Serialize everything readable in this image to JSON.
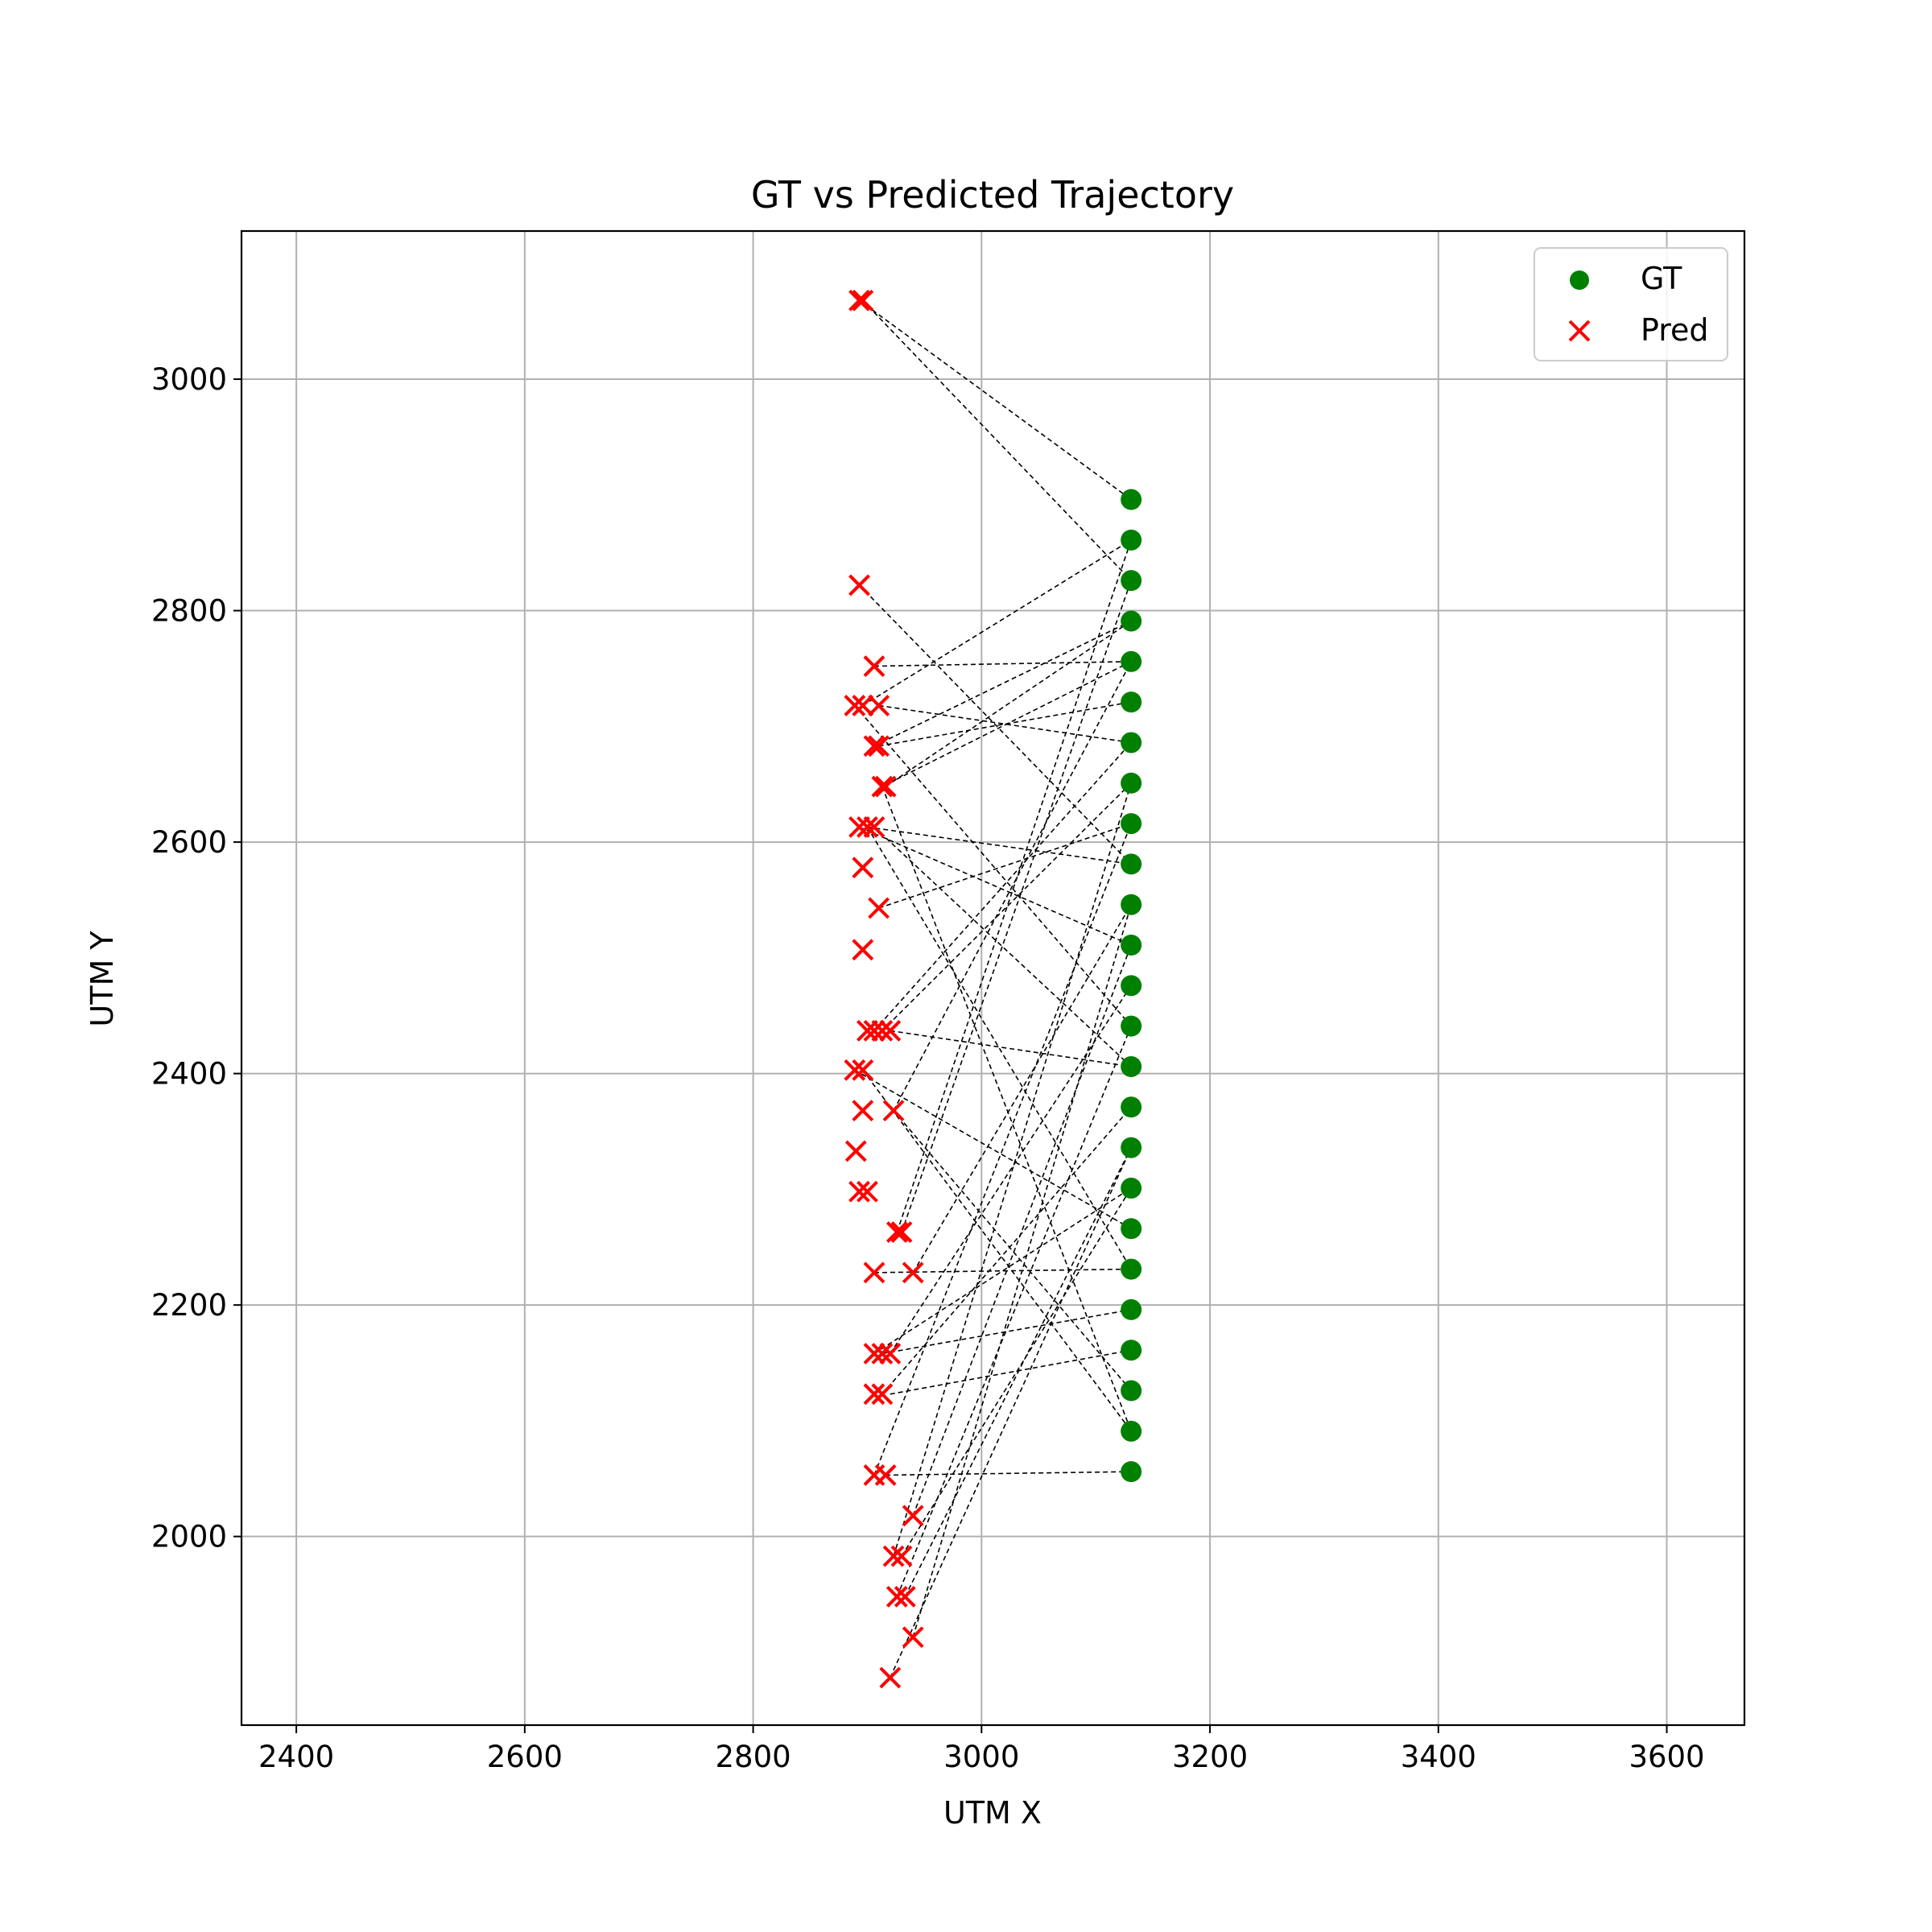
{
  "chart_data": {
    "type": "scatter",
    "title": "GT vs Predicted Trajectory",
    "xlabel": "UTM X",
    "ylabel": "UTM Y",
    "xlim": [
      2352,
      3668
    ],
    "ylim": [
      1837,
      3128
    ],
    "xticks": [
      2400,
      2600,
      2800,
      3000,
      3200,
      3400,
      3600
    ],
    "yticks": [
      2000,
      2200,
      2400,
      2600,
      2800,
      3000
    ],
    "grid": true,
    "legend_position": "top-right",
    "colors": {
      "gt": "#008000",
      "pred": "#ff0000",
      "link": "#000000"
    },
    "series": [
      {
        "name": "GT",
        "marker": "circle",
        "x": [
          3131,
          3131,
          3131,
          3131,
          3131,
          3131,
          3131,
          3131,
          3131,
          3131,
          3131,
          3131,
          3131,
          3131,
          3131,
          3131,
          3131,
          3131,
          3131,
          3131,
          3131,
          3131,
          3131,
          3131,
          3131
        ],
        "y": [
          2896,
          2861,
          2826,
          2791,
          2756,
          2721,
          2686,
          2651,
          2616,
          2581,
          2546,
          2511,
          2476,
          2441,
          2406,
          2371,
          2336,
          2301,
          2266,
          2231,
          2196,
          2161,
          2126,
          2091,
          2056
        ]
      },
      {
        "name": "Pred",
        "marker": "x",
        "x": [
          2893,
          2896,
          2893,
          2906,
          2889,
          2896,
          2910,
          2906,
          2910,
          2913,
          2916,
          2893,
          2900,
          2906,
          2896,
          2910,
          2896,
          2900,
          2906,
          2913,
          2920,
          2889,
          2896,
          2923,
          2896,
          2890,
          2893,
          2900,
          2926,
          2930,
          2906,
          2940,
          2906,
          2913,
          2920,
          2906,
          2913,
          2906,
          2916,
          2940,
          2923,
          2930,
          2926,
          2933,
          2940,
          2920
        ],
        "y": [
          3068,
          3068,
          2822,
          2752,
          2718,
          2718,
          2718,
          2683,
          2683,
          2648,
          2648,
          2613,
          2613,
          2613,
          2578,
          2543,
          2507,
          2437,
          2437,
          2437,
          2437,
          2403,
          2403,
          2368,
          2368,
          2333,
          2298,
          2298,
          2263,
          2263,
          2228,
          2228,
          2158,
          2158,
          2158,
          2123,
          2123,
          2053,
          2053,
          2018,
          1983,
          1983,
          1948,
          1948,
          1913,
          1878
        ]
      }
    ],
    "links": [
      [
        2893,
        3068,
        3131,
        2896
      ],
      [
        2896,
        3068,
        3131,
        2826
      ],
      [
        2893,
        2822,
        3131,
        2581
      ],
      [
        2906,
        2752,
        3131,
        2756
      ],
      [
        2889,
        2718,
        3131,
        2441
      ],
      [
        2896,
        2718,
        3131,
        2861
      ],
      [
        2910,
        2718,
        3131,
        2686
      ],
      [
        2906,
        2683,
        3131,
        2791
      ],
      [
        2910,
        2683,
        3131,
        2721
      ],
      [
        2913,
        2648,
        3131,
        2756
      ],
      [
        2916,
        2648,
        3131,
        2791
      ],
      [
        2893,
        2613,
        3131,
        2511
      ],
      [
        2900,
        2613,
        3131,
        2581
      ],
      [
        2906,
        2613,
        3131,
        2406
      ],
      [
        2910,
        2543,
        3131,
        2616
      ],
      [
        2906,
        2437,
        3131,
        2686
      ],
      [
        2913,
        2437,
        3131,
        2651
      ],
      [
        2920,
        2437,
        3131,
        2406
      ],
      [
        2889,
        2403,
        3131,
        2266
      ],
      [
        2896,
        2403,
        3131,
        2091
      ],
      [
        2923,
        2368,
        3131,
        2756
      ],
      [
        2923,
        2368,
        3131,
        2126
      ],
      [
        2926,
        2263,
        3131,
        2861
      ],
      [
        2930,
        2263,
        3131,
        2826
      ],
      [
        2906,
        2228,
        3131,
        2231
      ],
      [
        2940,
        2228,
        3131,
        2546
      ],
      [
        2906,
        2158,
        3131,
        2301
      ],
      [
        2913,
        2158,
        3131,
        2196
      ],
      [
        2920,
        2158,
        3131,
        2476
      ],
      [
        2913,
        2123,
        3131,
        2371
      ],
      [
        2920,
        2123,
        3131,
        2161
      ],
      [
        2906,
        2053,
        3131,
        2616
      ],
      [
        2916,
        2053,
        3131,
        2056
      ],
      [
        2940,
        2018,
        3131,
        2511
      ],
      [
        2923,
        1983,
        3131,
        2651
      ],
      [
        2930,
        1983,
        3131,
        2301
      ],
      [
        2926,
        1948,
        3131,
        2441
      ],
      [
        2933,
        1948,
        3131,
        2336
      ],
      [
        2940,
        1913,
        3131,
        2546
      ],
      [
        2920,
        1878,
        3131,
        2336
      ],
      [
        2913,
        2648,
        3131,
        2091
      ],
      [
        2900,
        2613,
        3131,
        2231
      ]
    ]
  }
}
